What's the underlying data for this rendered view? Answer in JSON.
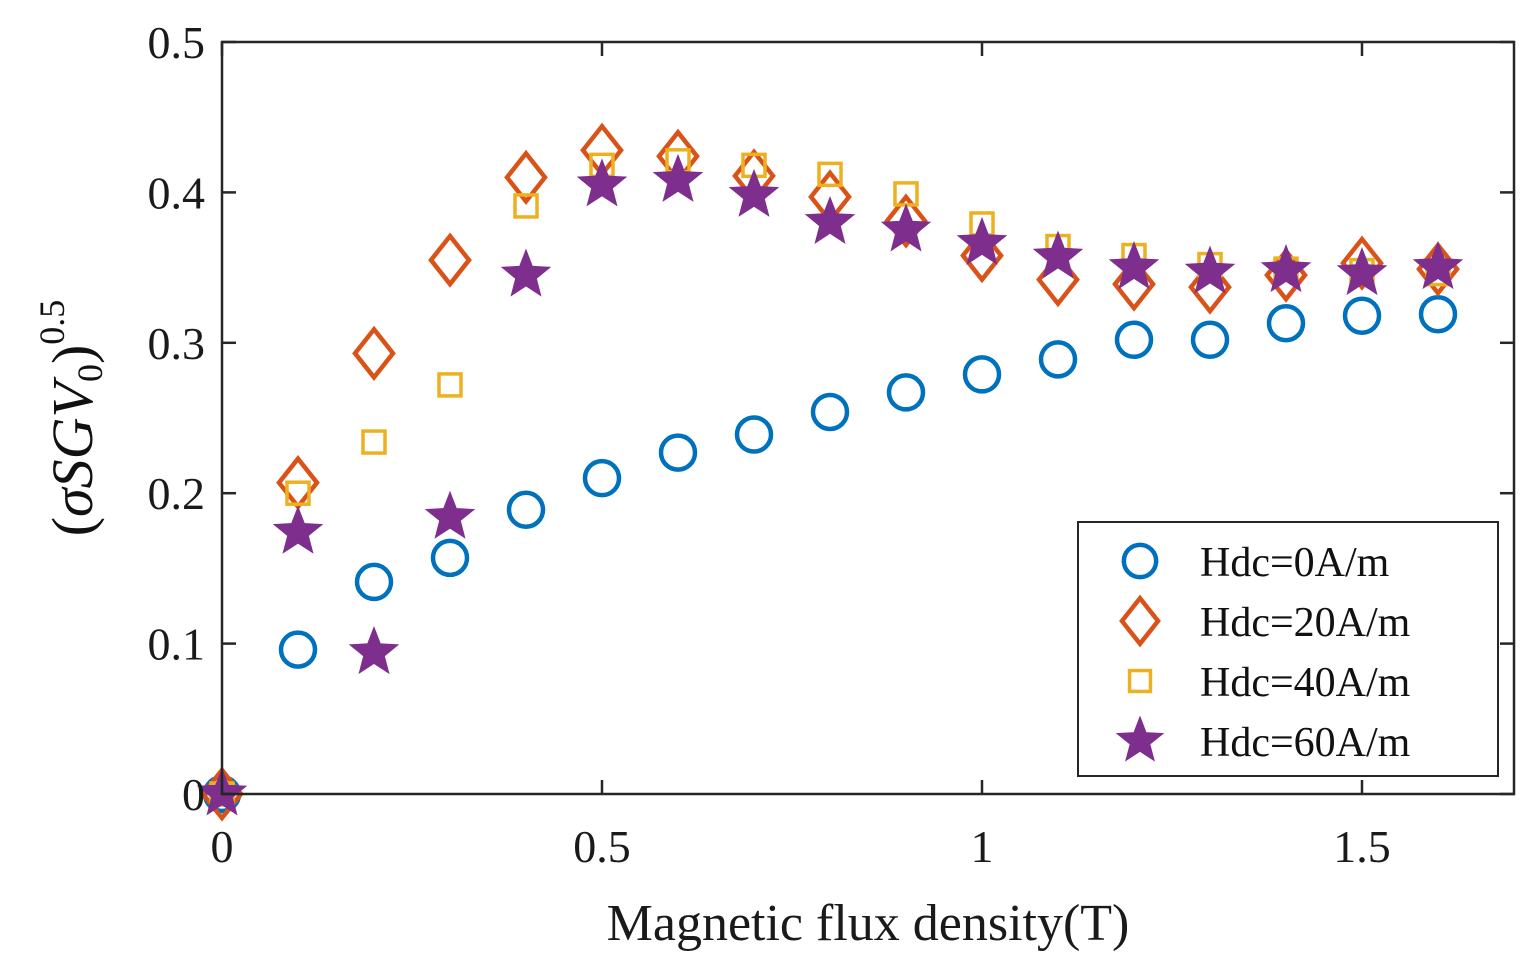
{
  "chart_data": {
    "type": "scatter",
    "title": "",
    "xlabel": "Magnetic flux density(T)",
    "ylabel": {
      "open_paren": "(",
      "sigma": "σ",
      "S": "S",
      "G": "G",
      "V": "V",
      "sub": "0",
      "close_paren": ")",
      "exponent": "0.5"
    },
    "xlim": [
      0,
      1.7
    ],
    "ylim": [
      0,
      0.5
    ],
    "xticks": [
      0,
      0.5,
      1,
      1.5
    ],
    "xtick_labels": [
      "0",
      "0.5",
      "1",
      "1.5"
    ],
    "yticks": [
      0,
      0.1,
      0.2,
      0.3,
      0.4,
      0.5
    ],
    "ytick_labels": [
      "0",
      "0.1",
      "0.2",
      "0.3",
      "0.4",
      "0.5"
    ],
    "grid": false,
    "legend_position": "bottom-right",
    "x": [
      0,
      0.1,
      0.2,
      0.3,
      0.4,
      0.5,
      0.6,
      0.7,
      0.8,
      0.9,
      1.0,
      1.1,
      1.2,
      1.3,
      1.4,
      1.5,
      1.6
    ],
    "series": [
      {
        "name": "Hdc=0A/m",
        "marker": "circle",
        "color": "#0072BD",
        "values": [
          0.0,
          0.096,
          0.141,
          0.157,
          0.189,
          0.21,
          0.227,
          0.239,
          0.254,
          0.267,
          0.279,
          0.289,
          0.302,
          0.302,
          0.313,
          0.318,
          0.319
        ]
      },
      {
        "name": "Hdc=20A/m",
        "marker": "diamond",
        "color": "#D95319",
        "values": [
          0.0,
          0.207,
          0.293,
          0.355,
          0.41,
          0.428,
          0.424,
          0.411,
          0.397,
          0.381,
          0.358,
          0.342,
          0.339,
          0.337,
          0.345,
          0.353,
          0.349
        ]
      },
      {
        "name": "Hdc=40A/m",
        "marker": "square",
        "color": "#EDB120",
        "values": [
          0.0,
          0.2,
          0.234,
          0.272,
          0.391,
          0.418,
          0.421,
          0.418,
          0.412,
          0.399,
          0.379,
          0.364,
          0.358,
          0.352,
          0.349,
          0.348,
          0.346
        ]
      },
      {
        "name": "Hdc=60A/m",
        "marker": "star",
        "color": "#7E2F8E",
        "values": [
          0.0,
          0.174,
          0.094,
          0.184,
          0.345,
          0.405,
          0.408,
          0.398,
          0.38,
          0.375,
          0.366,
          0.357,
          0.35,
          0.347,
          0.348,
          0.346,
          0.35
        ]
      }
    ]
  }
}
